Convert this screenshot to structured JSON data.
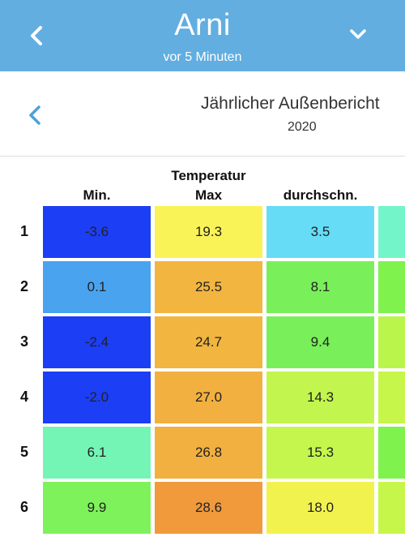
{
  "header": {
    "title": "Arni",
    "subtitle": "vor 5 Minuten"
  },
  "report": {
    "title": "Jährlicher Außenbericht",
    "year": "2020"
  },
  "table": {
    "group_header": "Temperatur",
    "columns": [
      "Min.",
      "Max",
      "durchschn."
    ],
    "rows": [
      {
        "label": "1",
        "cells": [
          {
            "value": "-3.6",
            "color": "#1c3ef5"
          },
          {
            "value": "19.3",
            "color": "#f9f357"
          },
          {
            "value": "3.5",
            "color": "#66dcf7"
          }
        ],
        "extra_color": "#74f5c9"
      },
      {
        "label": "2",
        "cells": [
          {
            "value": "0.1",
            "color": "#4aa3ef"
          },
          {
            "value": "25.5",
            "color": "#f2b53f"
          },
          {
            "value": "8.1",
            "color": "#79f05a"
          }
        ],
        "extra_color": "#7ff24e"
      },
      {
        "label": "3",
        "cells": [
          {
            "value": "-2.4",
            "color": "#1c3ef5"
          },
          {
            "value": "24.7",
            "color": "#f2b53f"
          },
          {
            "value": "9.4",
            "color": "#79f05a"
          }
        ],
        "extra_color": "#b9f54a"
      },
      {
        "label": "4",
        "cells": [
          {
            "value": "-2.0",
            "color": "#1c3ef5"
          },
          {
            "value": "27.0",
            "color": "#f2b040"
          },
          {
            "value": "14.3",
            "color": "#c2f64e"
          }
        ],
        "extra_color": "#c6f64a"
      },
      {
        "label": "5",
        "cells": [
          {
            "value": "6.1",
            "color": "#74f5b6"
          },
          {
            "value": "26.8",
            "color": "#f2b040"
          },
          {
            "value": "15.3",
            "color": "#c4f64e"
          }
        ],
        "extra_color": "#7ff24e"
      },
      {
        "label": "6",
        "cells": [
          {
            "value": "9.9",
            "color": "#7ef25a"
          },
          {
            "value": "28.6",
            "color": "#f09a3c"
          },
          {
            "value": "18.0",
            "color": "#f2f24e"
          }
        ],
        "extra_color": "#c6f64a"
      }
    ]
  },
  "icons": {
    "back": "chevron-left-icon",
    "menu": "chevron-down-icon",
    "prev_year": "chevron-left-icon"
  },
  "colors": {
    "topbar": "#62aee0",
    "accent": "#4aa3d8"
  }
}
